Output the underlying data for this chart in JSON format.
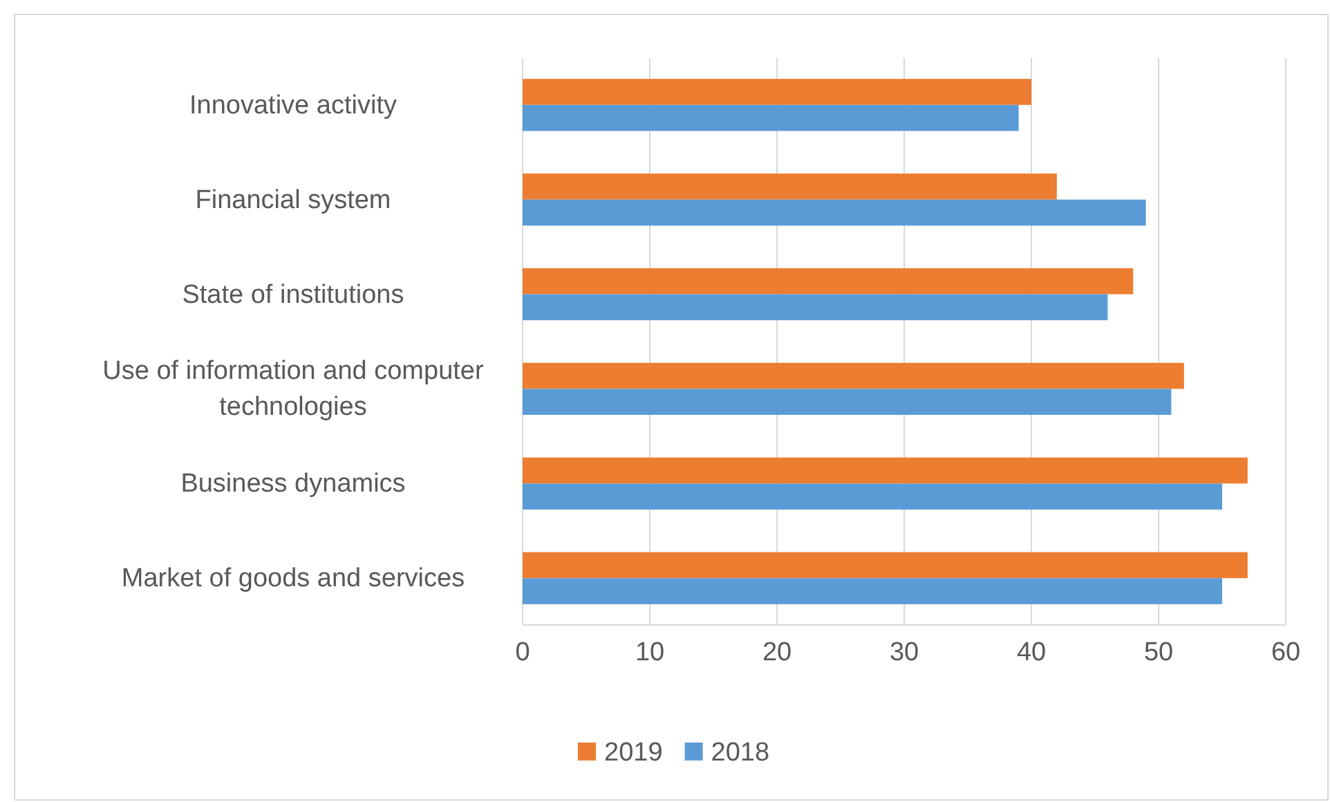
{
  "chart_data": {
    "type": "bar",
    "orientation": "horizontal",
    "categories": [
      "Innovative activity",
      "Financial system",
      "State of institutions",
      "Use of information and computer technologies",
      "Business dynamics",
      "Market of goods and services"
    ],
    "series": [
      {
        "name": "2019",
        "color": "#ed7d31",
        "values": [
          40,
          42,
          48,
          52,
          57,
          57
        ]
      },
      {
        "name": "2018",
        "color": "#5b9bd5",
        "values": [
          39,
          49,
          46,
          51,
          55,
          55
        ]
      }
    ],
    "xlim": [
      0,
      60
    ],
    "xticks": [
      0,
      10,
      20,
      30,
      40,
      50,
      60
    ],
    "grid": "x",
    "legend": "bottom"
  }
}
